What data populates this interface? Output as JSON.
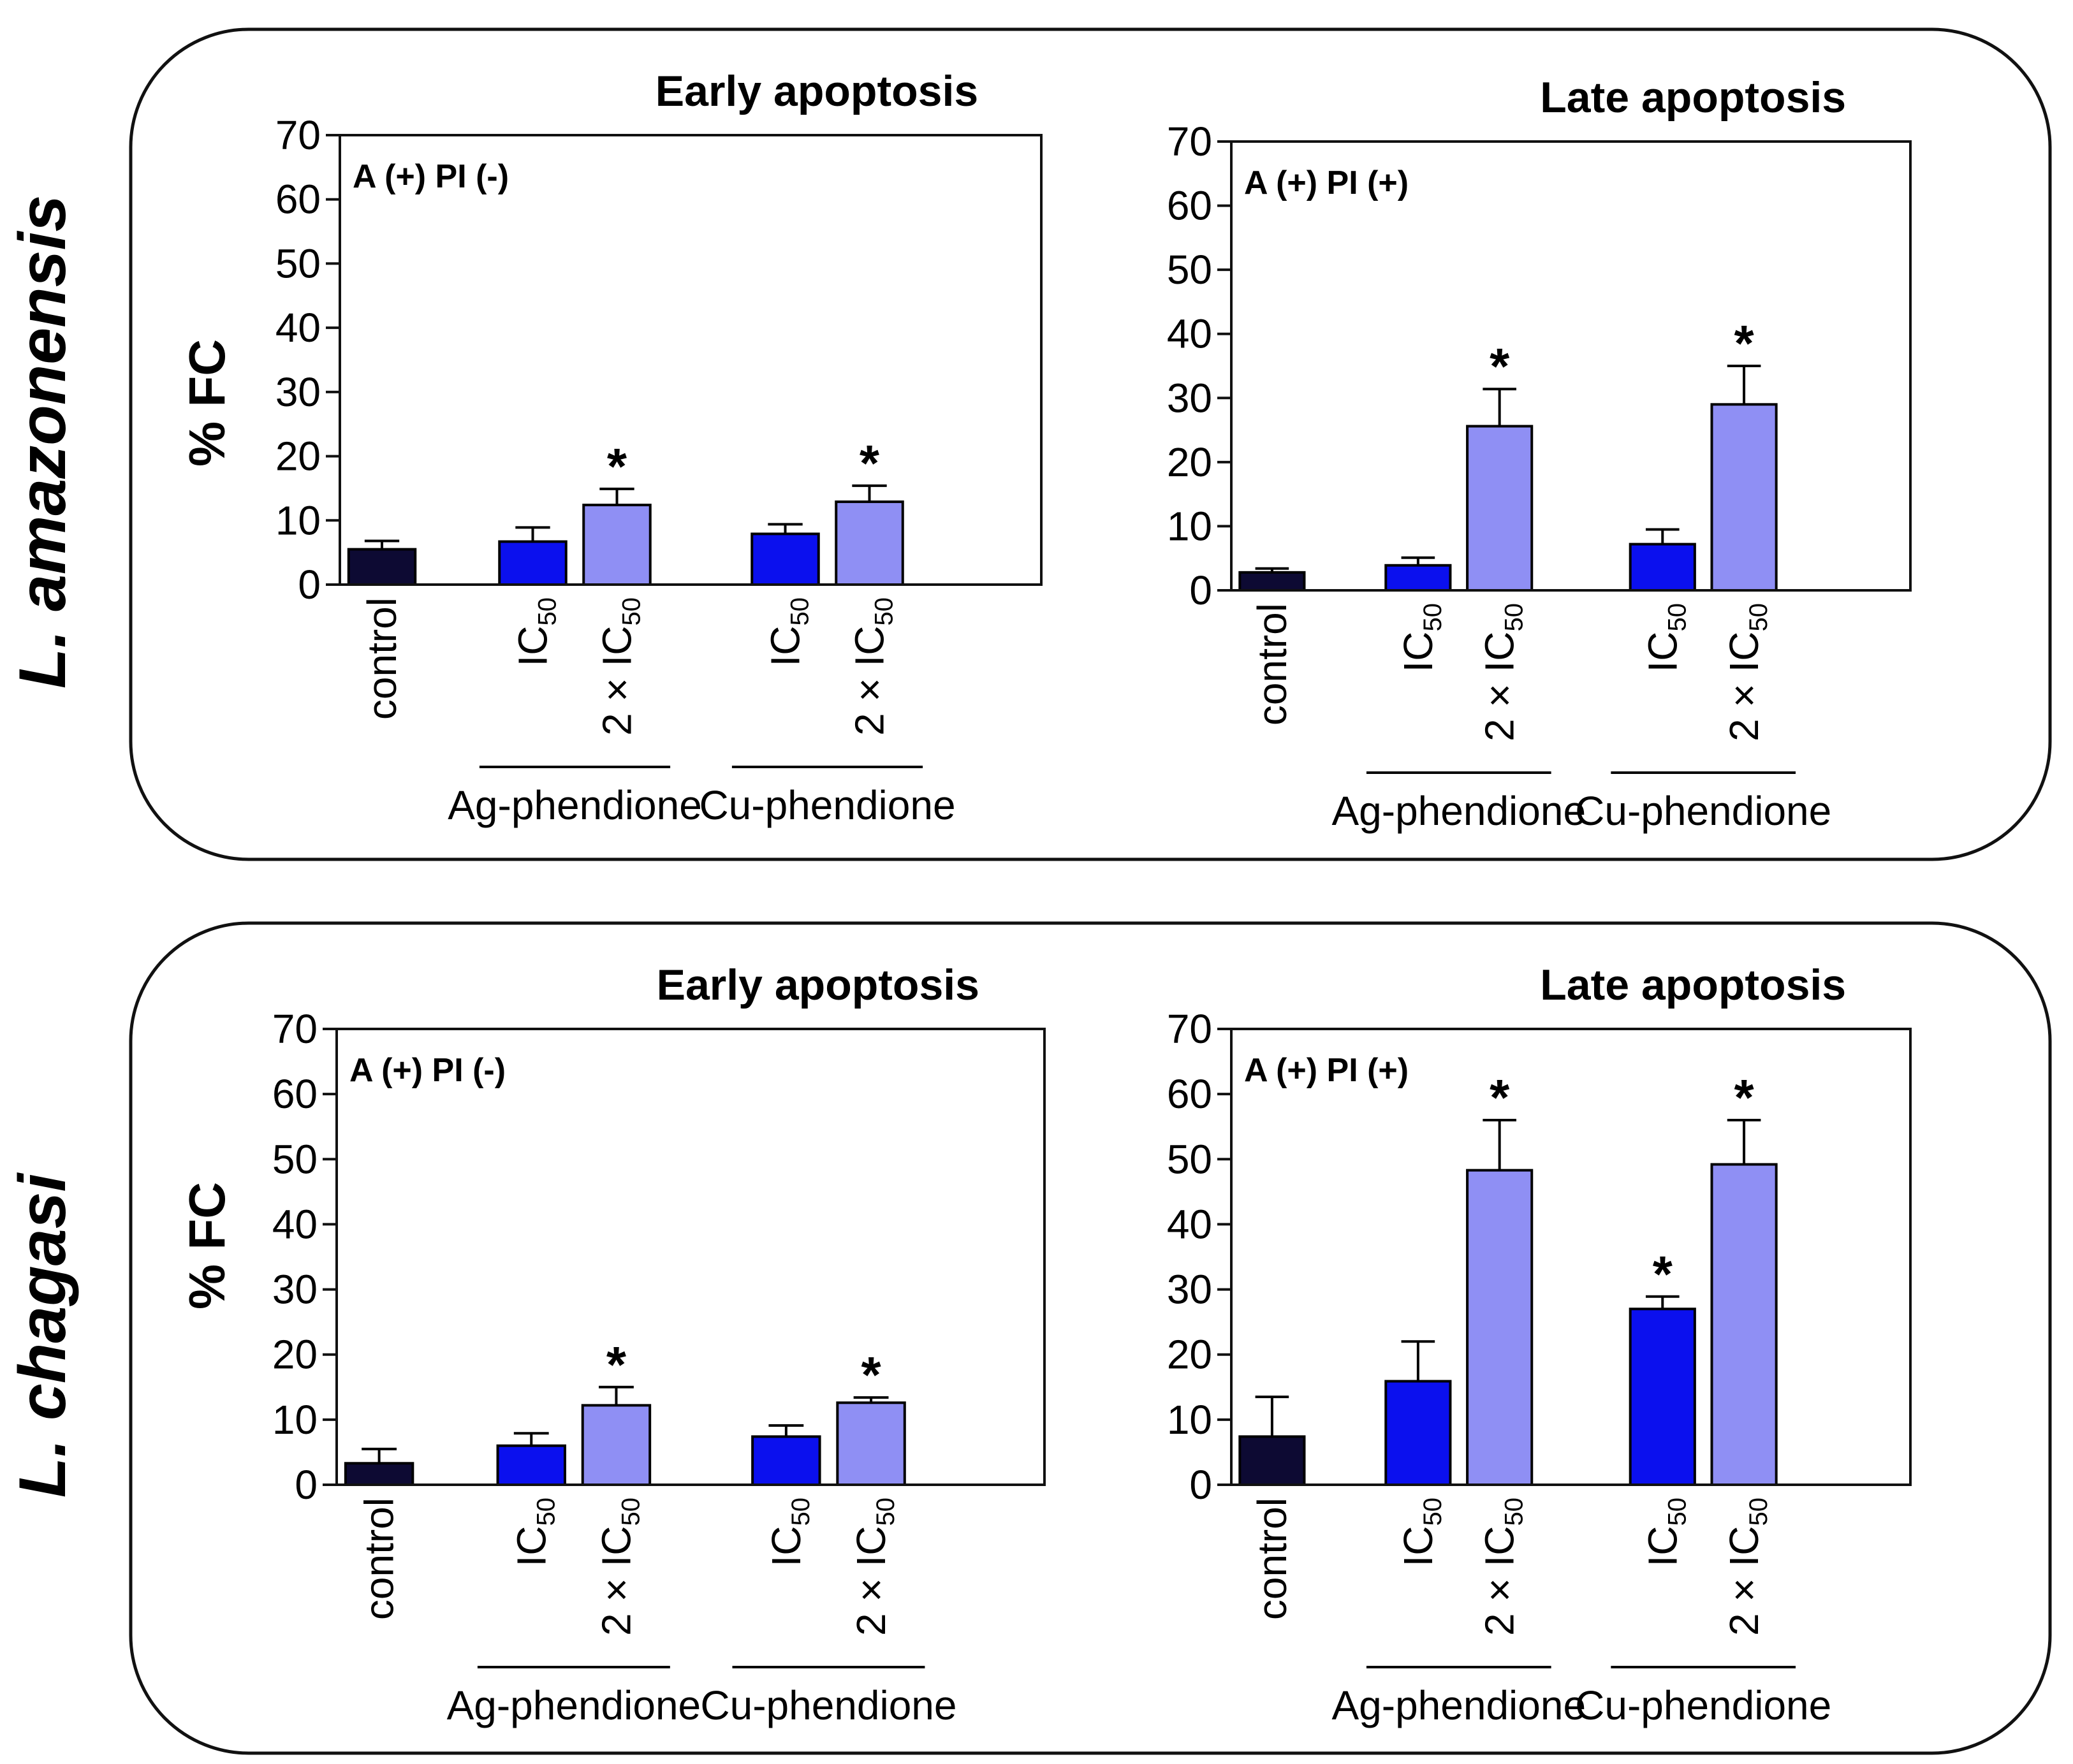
{
  "figure": {
    "ylabel": "% FC",
    "group_labels": [
      "Ag-phendione",
      "Cu-phendione"
    ],
    "colors": {
      "control": "#0d0a33",
      "ic50": "#0b10ee",
      "ic50x2": "#8f8ff4",
      "frame": "#111111"
    }
  },
  "chart_data": [
    {
      "type": "bar",
      "species": "L. amazonensis",
      "title": "Early apoptosis",
      "annotation": "A (+) PI (-)",
      "ylabel": "% FC",
      "ylim": [
        0,
        70
      ],
      "yticks": [
        0,
        10,
        20,
        30,
        40,
        50,
        60,
        70
      ],
      "categories": [
        "control",
        "IC50",
        "2 × IC50",
        "IC50",
        "2 × IC50"
      ],
      "groups": [
        "",
        "Ag-phendione",
        "Ag-phendione",
        "Cu-phendione",
        "Cu-phendione"
      ],
      "values": [
        5.5,
        6.7,
        12.4,
        7.9,
        12.9
      ],
      "errors": [
        1.3,
        2.2,
        2.5,
        1.5,
        2.5
      ],
      "significant": [
        false,
        false,
        true,
        false,
        true
      ]
    },
    {
      "type": "bar",
      "species": "L. amazonensis",
      "title": "Late apoptosis",
      "annotation": "A (+) PI (+)",
      "ylabel": "% FC",
      "ylim": [
        0,
        70
      ],
      "yticks": [
        0,
        10,
        20,
        30,
        40,
        50,
        60,
        70
      ],
      "categories": [
        "control",
        "IC50",
        "2 × IC50",
        "IC50",
        "2 × IC50"
      ],
      "groups": [
        "",
        "Ag-phendione",
        "Ag-phendione",
        "Cu-phendione",
        "Cu-phendione"
      ],
      "values": [
        2.8,
        3.9,
        25.6,
        7.2,
        29.0
      ],
      "errors": [
        0.6,
        1.2,
        5.8,
        2.3,
        6.0
      ],
      "significant": [
        false,
        false,
        true,
        false,
        true
      ]
    },
    {
      "type": "bar",
      "species": "L. chagasi",
      "title": "Early apoptosis",
      "annotation": "A (+) PI (-)",
      "ylabel": "% FC",
      "ylim": [
        0,
        70
      ],
      "yticks": [
        0,
        10,
        20,
        30,
        40,
        50,
        60,
        70
      ],
      "categories": [
        "control",
        "IC50",
        "2 × IC50",
        "IC50",
        "2 × IC50"
      ],
      "groups": [
        "",
        "Ag-phendione",
        "Ag-phendione",
        "Cu-phendione",
        "Cu-phendione"
      ],
      "values": [
        3.3,
        6.0,
        12.2,
        7.4,
        12.6
      ],
      "errors": [
        2.2,
        1.9,
        2.8,
        1.7,
        0.8
      ],
      "significant": [
        false,
        false,
        true,
        false,
        true
      ]
    },
    {
      "type": "bar",
      "species": "L. chagasi",
      "title": "Late apoptosis",
      "annotation": "A (+) PI (+)",
      "ylabel": "% FC",
      "ylim": [
        0,
        70
      ],
      "yticks": [
        0,
        10,
        20,
        30,
        40,
        50,
        60,
        70
      ],
      "categories": [
        "control",
        "IC50",
        "2 × IC50",
        "IC50",
        "2 × IC50"
      ],
      "groups": [
        "",
        "Ag-phendione",
        "Ag-phendione",
        "Cu-phendione",
        "Cu-phendione"
      ],
      "values": [
        7.4,
        15.9,
        48.3,
        27.0,
        49.2
      ],
      "errors": [
        6.1,
        6.1,
        7.7,
        1.9,
        6.8
      ],
      "significant": [
        false,
        false,
        true,
        true,
        true
      ]
    }
  ]
}
